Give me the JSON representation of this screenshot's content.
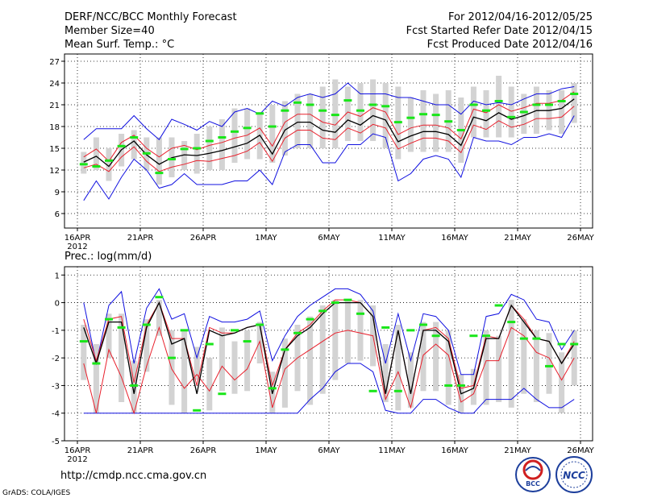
{
  "header": {
    "title": "DERF/NCC/BCC Monthly Forecast",
    "member_size": "Member Size=40",
    "variable": "Mean Surf. Temp.: °C",
    "period": "For 2012/04/16-2012/05/25",
    "refer_date": "Fcst Started Refer Date 2012/04/15",
    "produced_date": "Fcst Produced Date 2012/04/16"
  },
  "footer": {
    "url": "http://cmdp.ncc.cma.gov.cn",
    "credit": "GrADS: COLA/IGES",
    "logo_bcc": "BCC",
    "logo_ncc": "NCC"
  },
  "colors": {
    "box": "#d3d3d3",
    "mean": "#000000",
    "inner": "#e8202c",
    "outer": "#1010e0",
    "median": "#19e619"
  },
  "chart_data": [
    {
      "type": "line",
      "title": "Mean Surf. Temp.: °C",
      "x_start": "2012-04-16",
      "days": 40,
      "xticks": [
        {
          "day": 0,
          "label": "16APR",
          "sub": "2012"
        },
        {
          "day": 5,
          "label": "21APR"
        },
        {
          "day": 10,
          "label": "26APR"
        },
        {
          "day": 15,
          "label": "1MAY"
        },
        {
          "day": 20,
          "label": "6MAY"
        },
        {
          "day": 25,
          "label": "11MAY"
        },
        {
          "day": 30,
          "label": "16MAY"
        },
        {
          "day": 35,
          "label": "21MAY"
        },
        {
          "day": 40,
          "label": "26MAY"
        }
      ],
      "yticks": [
        6,
        9,
        12,
        15,
        18,
        21,
        24,
        27
      ],
      "ylim": [
        4,
        28
      ],
      "series": [
        {
          "name": "box_low",
          "values": [
            11.5,
            12,
            10.5,
            12.5,
            13.5,
            12,
            10,
            11,
            12,
            11.5,
            12,
            12,
            13,
            13.5,
            13.5,
            13,
            14,
            15,
            15,
            15,
            15,
            16,
            16,
            16,
            15,
            13.5,
            14.5,
            14.5,
            14.5,
            14.5,
            13,
            16.5,
            16.5,
            16.5,
            16.5,
            17,
            17,
            17.5,
            17,
            18.5
          ]
        },
        {
          "name": "box_high",
          "values": [
            14.5,
            16.5,
            15,
            17,
            17.5,
            16.5,
            16.5,
            16.5,
            16,
            17,
            18,
            19,
            20.5,
            20.5,
            20,
            21,
            21.5,
            22.5,
            22.5,
            23.5,
            24.5,
            23.5,
            24,
            24.5,
            24,
            23.5,
            22,
            23,
            22.5,
            23,
            22,
            23.5,
            23,
            25,
            23.5,
            22.5,
            23.5,
            23,
            23,
            24
          ]
        },
        {
          "name": "outer_low",
          "values": [
            7.8,
            10.5,
            8,
            11,
            13.5,
            12,
            9.5,
            10,
            11.5,
            10,
            10,
            10,
            10.5,
            10.5,
            12,
            10,
            14.5,
            15.5,
            15.5,
            13,
            13,
            15.5,
            15.5,
            17,
            16.5,
            10.5,
            11.5,
            13.5,
            14,
            13.5,
            11,
            16.5,
            16,
            16,
            15.5,
            16.5,
            16.5,
            17,
            16.5,
            19.5
          ]
        },
        {
          "name": "outer_high",
          "values": [
            16.2,
            17.7,
            17.7,
            17.7,
            19.5,
            17.7,
            16.2,
            19,
            18.3,
            17.5,
            18.7,
            18,
            20,
            20.5,
            19.7,
            21.5,
            20.8,
            22,
            22.5,
            22,
            22.5,
            24,
            22.5,
            22.5,
            22.5,
            22,
            22,
            21.5,
            21,
            21,
            19.7,
            21.5,
            21,
            21.3,
            21,
            21.8,
            22.5,
            22.5,
            23.2,
            23.5
          ]
        },
        {
          "name": "inner_low",
          "values": [
            12.3,
            12.8,
            11.8,
            13.8,
            15.2,
            13.2,
            11.8,
            12.4,
            12.8,
            13.3,
            13.2,
            13.6,
            14,
            14.6,
            15.8,
            13.2,
            16.4,
            17.5,
            17.5,
            16.4,
            16.2,
            17.8,
            17.1,
            18.3,
            17.8,
            14.9,
            15.7,
            16.4,
            16.4,
            16,
            14.4,
            18.2,
            17.6,
            18.8,
            17.9,
            18.3,
            19.1,
            19.1,
            19.3,
            20.8
          ]
        },
        {
          "name": "inner_high",
          "values": [
            13.8,
            14.9,
            13.2,
            15.8,
            16.8,
            15,
            13.8,
            15,
            15.4,
            14.8,
            15.4,
            15.8,
            16.4,
            16.8,
            17.8,
            15.3,
            18.6,
            19.7,
            19.7,
            18.6,
            18.2,
            20,
            19.4,
            20.6,
            20,
            16.9,
            17.8,
            18.2,
            18.2,
            17.8,
            16.3,
            20.4,
            19.9,
            21,
            20.1,
            20.6,
            21.2,
            21.2,
            21.6,
            22.8
          ]
        },
        {
          "name": "mean",
          "values": [
            13.1,
            13.9,
            12.5,
            14.8,
            16,
            14.1,
            12.8,
            13.7,
            14.1,
            14,
            14.3,
            14.7,
            15.2,
            15.7,
            16.8,
            14.2,
            17.5,
            18.6,
            18.6,
            17.5,
            17.2,
            18.9,
            18.2,
            19.5,
            18.9,
            15.9,
            16.7,
            17.3,
            17.3,
            16.9,
            15.4,
            19.3,
            18.8,
            19.9,
            19,
            19.5,
            20.2,
            20.2,
            20.5,
            21.8
          ]
        },
        {
          "name": "median",
          "values": [
            12.8,
            12.5,
            13.3,
            15.3,
            16.5,
            14.3,
            11.6,
            13.5,
            14.9,
            15,
            16,
            16.5,
            17.3,
            17.8,
            19.8,
            18,
            20.2,
            21.3,
            21,
            20.2,
            19.6,
            21.6,
            20.2,
            21,
            20.8,
            18.6,
            19.2,
            19.7,
            19.6,
            18.7,
            17.5,
            21,
            20.2,
            21.5,
            19.3,
            20,
            21,
            21,
            21.5,
            22.5
          ]
        }
      ]
    },
    {
      "type": "line",
      "title": "Prec.: log(mm/d)",
      "x_start": "2012-04-16",
      "days": 40,
      "xticks": [
        {
          "day": 0,
          "label": "16APR",
          "sub": "2012"
        },
        {
          "day": 5,
          "label": "21APR"
        },
        {
          "day": 10,
          "label": "26APR"
        },
        {
          "day": 15,
          "label": "1MAY"
        },
        {
          "day": 20,
          "label": "6MAY"
        },
        {
          "day": 25,
          "label": "11MAY"
        },
        {
          "day": 30,
          "label": "16MAY"
        },
        {
          "day": 35,
          "label": "21MAY"
        },
        {
          "day": 40,
          "label": "26MAY"
        }
      ],
      "yticks": [
        -5,
        -4,
        -3,
        -2,
        -1,
        0,
        1
      ],
      "ylim": [
        -5,
        1.3
      ],
      "series": [
        {
          "name": "box_low",
          "values": [
            -2.8,
            -4,
            -2,
            -3.6,
            -4,
            -2.5,
            -1.2,
            -3.7,
            -4,
            -2.8,
            -3.9,
            -3.2,
            -3.3,
            -3.2,
            -2.2,
            -4,
            -3.8,
            -3.2,
            -3.7,
            -3.3,
            -2.8,
            -2.2,
            -2.1,
            -2.3,
            -3.6,
            -3.9,
            -3.8,
            -3.2,
            -3.2,
            -3.7,
            -4,
            -3.7,
            -3.7,
            -3.6,
            -3.8,
            -3.3,
            -3.6,
            -3.3,
            -4,
            -3
          ]
        },
        {
          "name": "box_high",
          "values": [
            -0.8,
            -1.5,
            -0.4,
            -0.4,
            -2.1,
            -0.6,
            0.1,
            -1,
            -1,
            -1.6,
            -2,
            -0.9,
            -1.4,
            -1,
            -0.7,
            -2.5,
            -1.3,
            -0.8,
            -0.5,
            -0.1,
            0.1,
            0.1,
            0.1,
            -0.1,
            -1.5,
            -0.8,
            -1.8,
            -0.7,
            -0.7,
            -1,
            -2.6,
            -2.4,
            -1,
            -1.2,
            0.1,
            -0.6,
            -1,
            -1.1,
            -1.8,
            -1
          ]
        },
        {
          "name": "outer_low",
          "values": [
            -4,
            -4,
            -4,
            -4,
            -4,
            -4,
            -4,
            -4,
            -4,
            -4,
            -4,
            -4,
            -4,
            -4,
            -4,
            -4,
            -4,
            -4,
            -3.5,
            -3.1,
            -2.5,
            -2.2,
            -2.2,
            -2.5,
            -3.9,
            -4,
            -4,
            -3.5,
            -3.5,
            -3.8,
            -4,
            -4,
            -3.5,
            -3.5,
            -3.5,
            -3.1,
            -3.5,
            -3.8,
            -3.8,
            -3.5
          ]
        },
        {
          "name": "outer_high",
          "values": [
            0,
            -2.2,
            -0.1,
            0.4,
            -2.2,
            -0.2,
            0.5,
            -0.6,
            -0.4,
            -2,
            -0.5,
            -0.7,
            -0.7,
            -0.6,
            -0.3,
            -2.1,
            -1.2,
            -0.5,
            -0.1,
            0.2,
            0.5,
            0.5,
            0.3,
            -0.3,
            -2.2,
            -0.4,
            -2.1,
            -0.4,
            -0.5,
            -1,
            -2.6,
            -2.6,
            -0.5,
            -0.4,
            0.3,
            0.1,
            -0.6,
            -0.7,
            -1.7,
            -1
          ]
        },
        {
          "name": "inner_low",
          "values": [
            -2.2,
            -4,
            -1.7,
            -2.7,
            -4,
            -2.3,
            -0.9,
            -2.4,
            -3.1,
            -2.6,
            -3.2,
            -2.3,
            -2.8,
            -2.4,
            -1.4,
            -3.8,
            -2.4,
            -2,
            -1.7,
            -1.4,
            -1.1,
            -1,
            -1.1,
            -1.2,
            -3.5,
            -2.5,
            -3.8,
            -1.9,
            -1.5,
            -1.9,
            -3.6,
            -3.3,
            -2.1,
            -2.1,
            -0.9,
            -1.2,
            -1.8,
            -2,
            -2.8,
            -2
          ]
        },
        {
          "name": "inner_high",
          "values": [
            -0.6,
            -2.1,
            -0.6,
            -0.5,
            -2.9,
            -0.8,
            0,
            -1.3,
            -1.3,
            -3,
            -0.9,
            -1.1,
            -1.1,
            -0.9,
            -0.8,
            -3,
            -1.7,
            -1.1,
            -0.8,
            -0.3,
            0.1,
            0.1,
            0,
            -0.5,
            -3.3,
            -1,
            -3.3,
            -1,
            -0.9,
            -1.3,
            -3.1,
            -3,
            -1.2,
            -1.3,
            -0.1,
            -0.6,
            -1.3,
            -1.4,
            -2.2,
            -1.4
          ]
        },
        {
          "name": "mean",
          "values": [
            -0.9,
            -2.2,
            -0.7,
            -0.7,
            -3.3,
            -0.9,
            0,
            -1.5,
            -1.3,
            -3.3,
            -1,
            -1.2,
            -1.1,
            -0.9,
            -0.8,
            -3.3,
            -1.7,
            -1.2,
            -0.9,
            -0.4,
            0,
            0,
            0,
            -0.5,
            -3.3,
            -1,
            -3.3,
            -1,
            -1,
            -1.4,
            -3.3,
            -3.1,
            -1.3,
            -1.3,
            -0.1,
            -0.7,
            -1.3,
            -1.4,
            -2.2,
            -1.5
          ]
        },
        {
          "name": "median",
          "values": [
            -1.4,
            -2.2,
            -0.6,
            -0.9,
            -3,
            -0.8,
            0.2,
            -2,
            -1,
            -3.9,
            -1.5,
            -3.3,
            -1,
            -1.4,
            -0.8,
            -3.1,
            -1.7,
            -1.1,
            -0.6,
            -0.3,
            0,
            0.1,
            -0.4,
            -3.2,
            -0.9,
            -3.2,
            -1,
            -0.8,
            -1.2,
            -3,
            -3,
            -1.2,
            -1.2,
            -0.1,
            -0.7,
            -1.3,
            -1.3,
            -2.3,
            -1.5,
            -1.5
          ]
        }
      ]
    }
  ]
}
